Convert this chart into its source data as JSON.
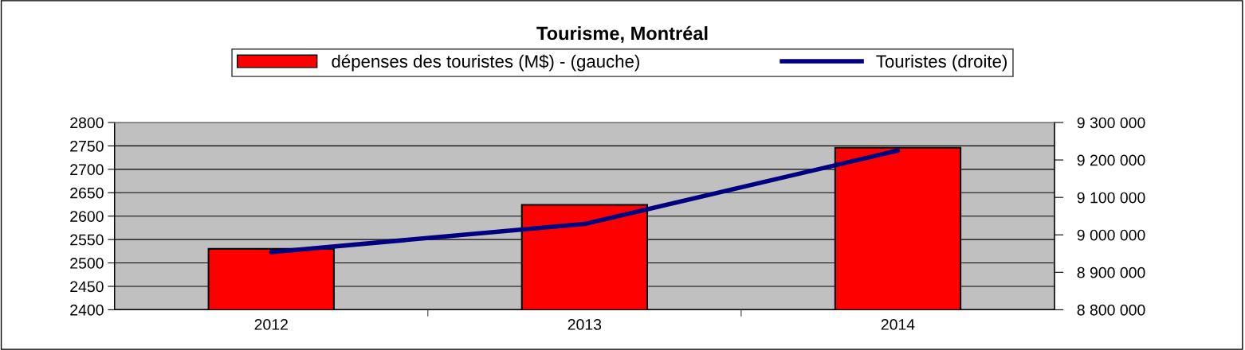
{
  "chart_data": {
    "type": "bar",
    "title": "Tourisme, Montréal",
    "categories": [
      "2012",
      "2013",
      "2014"
    ],
    "series": [
      {
        "name": "dépenses des touristes (M$) - (gauche)",
        "color": "#ff0000",
        "values": [
          2530,
          2624,
          2746
        ]
      },
      {
        "name": "Touristes (droite)",
        "type": "line",
        "axis": "y2",
        "color": "#000080",
        "values": [
          8954000,
          9029000,
          9225000
        ]
      }
    ],
    "ylim": [
      2400,
      2800
    ],
    "yticks": [
      2400,
      2450,
      2500,
      2550,
      2600,
      2650,
      2700,
      2750,
      2800
    ],
    "y2lim": [
      8800000,
      9300000
    ],
    "y2ticks": [
      {
        "value": 8800000,
        "label": "8 800 000"
      },
      {
        "value": 8900000,
        "label": "8 900 000"
      },
      {
        "value": 9000000,
        "label": "9 000 000"
      },
      {
        "value": 9100000,
        "label": "9 100 000"
      },
      {
        "value": 9200000,
        "label": "9 200 000"
      },
      {
        "value": 9300000,
        "label": "9 300 000"
      }
    ],
    "grid": "y",
    "legend": "top",
    "marker": "none",
    "line_style": "solid"
  }
}
